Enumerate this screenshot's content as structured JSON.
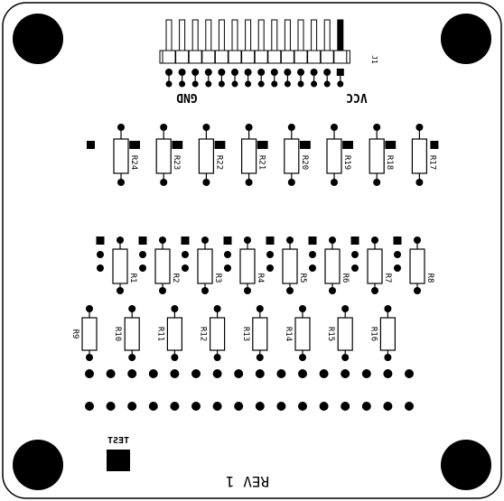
{
  "board": {
    "revision": "REV 1",
    "test_label": "TEST",
    "header_label": "J1",
    "gnd_label": "GND",
    "vcc_label": "VCC"
  },
  "pin_header": {
    "pins": 14
  },
  "top_resistors": [
    "R24",
    "R23",
    "R22",
    "R21",
    "R20",
    "R19",
    "R18",
    "R17"
  ],
  "middle_resistors": [
    "R1",
    "R2",
    "R3",
    "R4",
    "R5",
    "R6",
    "R7",
    "R8"
  ],
  "bottom_resistors": [
    "R9",
    "R10",
    "R11",
    "R12",
    "R13",
    "R14",
    "R15",
    "R16"
  ],
  "pad_rows": {
    "columns": 16
  },
  "colors": {
    "ink": "#000000",
    "background": "#ffffff"
  }
}
